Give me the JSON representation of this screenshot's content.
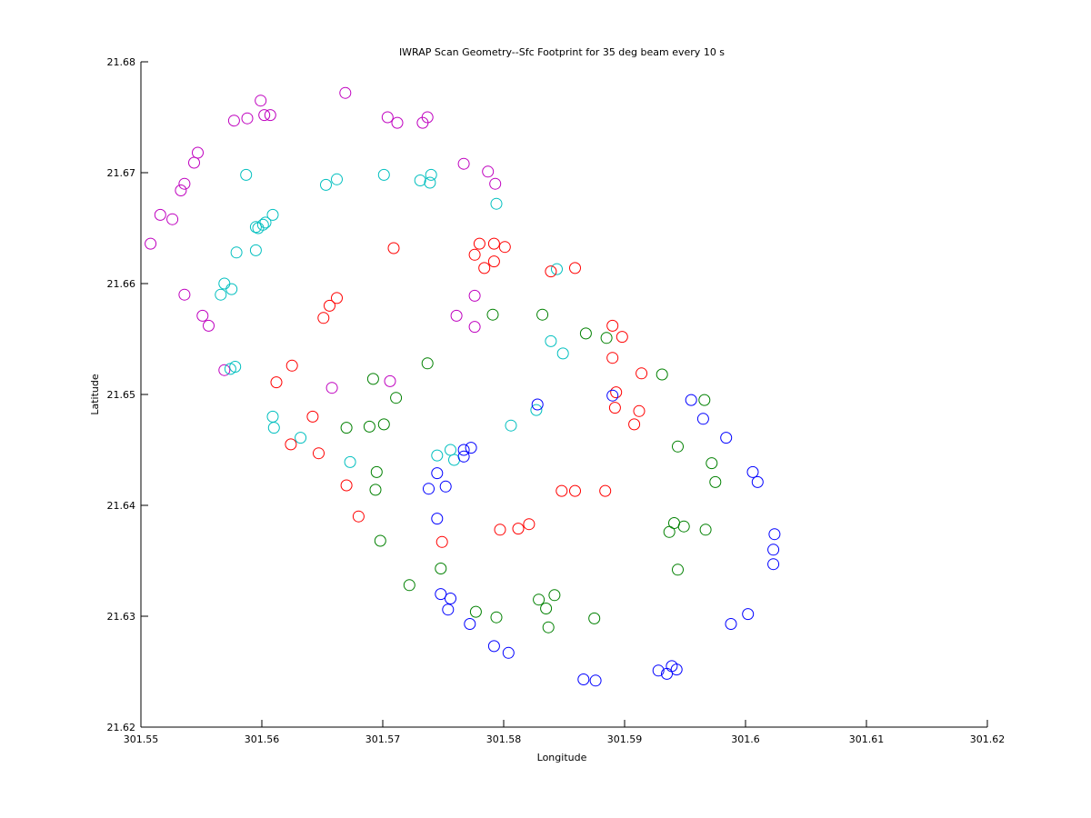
{
  "chart_data": {
    "type": "scatter",
    "title": "IWRAP Scan Geometry--Sfc Footprint for 35 deg beam every 10 s",
    "xlabel": "Longitude",
    "ylabel": "Latitude",
    "xlim": [
      301.55,
      301.62
    ],
    "ylim": [
      21.62,
      21.68
    ],
    "xticks": [
      301.55,
      301.56,
      301.57,
      301.58,
      301.59,
      301.6,
      301.61,
      301.62
    ],
    "xtick_labels": [
      "301.55",
      "301.56",
      "301.57",
      "301.58",
      "301.59",
      "301.6",
      "301.61",
      "301.62"
    ],
    "yticks": [
      21.62,
      21.63,
      21.64,
      21.65,
      21.66,
      21.67,
      21.68
    ],
    "ytick_labels": [
      "21.62",
      "21.63",
      "21.64",
      "21.65",
      "21.66",
      "21.67",
      "21.68"
    ],
    "grid": false,
    "marker": "open-circle",
    "series": [
      {
        "color": "#bf00bf",
        "points": [
          [
            301.5508,
            21.6636
          ],
          [
            301.5516,
            21.6662
          ],
          [
            301.5526,
            21.6658
          ],
          [
            301.5533,
            21.6684
          ],
          [
            301.5536,
            21.669
          ],
          [
            301.5544,
            21.6709
          ],
          [
            301.5547,
            21.6718
          ],
          [
            301.5536,
            21.659
          ],
          [
            301.5551,
            21.6571
          ],
          [
            301.5556,
            21.6562
          ],
          [
            301.5569,
            21.6522
          ],
          [
            301.5577,
            21.6747
          ],
          [
            301.5588,
            21.6749
          ],
          [
            301.5599,
            21.6765
          ],
          [
            301.5602,
            21.6752
          ],
          [
            301.5607,
            21.6752
          ],
          [
            301.5669,
            21.6772
          ],
          [
            301.5704,
            21.675
          ],
          [
            301.5712,
            21.6745
          ],
          [
            301.5733,
            21.6745
          ],
          [
            301.5737,
            21.675
          ],
          [
            301.5767,
            21.6708
          ],
          [
            301.5787,
            21.6701
          ],
          [
            301.5793,
            21.669
          ],
          [
            301.5776,
            21.6589
          ],
          [
            301.5761,
            21.6571
          ],
          [
            301.5776,
            21.6561
          ],
          [
            301.5658,
            21.6506
          ],
          [
            301.5706,
            21.6512
          ]
        ]
      },
      {
        "color": "#00bfbf",
        "points": [
          [
            301.5653,
            21.6689
          ],
          [
            301.5662,
            21.6694
          ],
          [
            301.5587,
            21.6698
          ],
          [
            301.5701,
            21.6698
          ],
          [
            301.5731,
            21.6693
          ],
          [
            301.574,
            21.6698
          ],
          [
            301.5739,
            21.6691
          ],
          [
            301.5794,
            21.6672
          ],
          [
            301.5609,
            21.6662
          ],
          [
            301.5603,
            21.6655
          ],
          [
            301.5601,
            21.6653
          ],
          [
            301.5597,
            21.665
          ],
          [
            301.5595,
            21.6651
          ],
          [
            301.5579,
            21.6628
          ],
          [
            301.5595,
            21.663
          ],
          [
            301.5569,
            21.66
          ],
          [
            301.5575,
            21.6595
          ],
          [
            301.5566,
            21.659
          ],
          [
            301.5574,
            21.6523
          ],
          [
            301.5578,
            21.6525
          ],
          [
            301.5609,
            21.648
          ],
          [
            301.561,
            21.647
          ],
          [
            301.5632,
            21.6461
          ],
          [
            301.5673,
            21.6439
          ],
          [
            301.5745,
            21.6445
          ],
          [
            301.5756,
            21.645
          ],
          [
            301.5759,
            21.6441
          ],
          [
            301.5806,
            21.6472
          ],
          [
            301.5827,
            21.6486
          ],
          [
            301.5839,
            21.6548
          ],
          [
            301.5849,
            21.6537
          ],
          [
            301.5844,
            21.6613
          ]
        ]
      },
      {
        "color": "#ff0000",
        "points": [
          [
            301.5709,
            21.6632
          ],
          [
            301.578,
            21.6636
          ],
          [
            301.5776,
            21.6626
          ],
          [
            301.5784,
            21.6614
          ],
          [
            301.5792,
            21.6636
          ],
          [
            301.5792,
            21.662
          ],
          [
            301.5801,
            21.6633
          ],
          [
            301.5662,
            21.6587
          ],
          [
            301.5656,
            21.658
          ],
          [
            301.5651,
            21.6569
          ],
          [
            301.5839,
            21.6611
          ],
          [
            301.5859,
            21.6614
          ],
          [
            301.589,
            21.6562
          ],
          [
            301.5898,
            21.6552
          ],
          [
            301.589,
            21.6533
          ],
          [
            301.5914,
            21.6519
          ],
          [
            301.5893,
            21.6502
          ],
          [
            301.5892,
            21.6488
          ],
          [
            301.5912,
            21.6485
          ],
          [
            301.5908,
            21.6473
          ],
          [
            301.5625,
            21.6526
          ],
          [
            301.5612,
            21.6511
          ],
          [
            301.5642,
            21.648
          ],
          [
            301.5624,
            21.6455
          ],
          [
            301.5647,
            21.6447
          ],
          [
            301.567,
            21.6418
          ],
          [
            301.568,
            21.639
          ],
          [
            301.5848,
            21.6413
          ],
          [
            301.5859,
            21.6413
          ],
          [
            301.5884,
            21.6413
          ],
          [
            301.5797,
            21.6378
          ],
          [
            301.5812,
            21.6379
          ],
          [
            301.5821,
            21.6383
          ],
          [
            301.5749,
            21.6367
          ]
        ]
      },
      {
        "color": "#008000",
        "points": [
          [
            301.5791,
            21.6572
          ],
          [
            301.5832,
            21.6572
          ],
          [
            301.5868,
            21.6555
          ],
          [
            301.5885,
            21.6551
          ],
          [
            301.5931,
            21.6518
          ],
          [
            301.5966,
            21.6495
          ],
          [
            301.5737,
            21.6528
          ],
          [
            301.5692,
            21.6514
          ],
          [
            301.5711,
            21.6497
          ],
          [
            301.567,
            21.647
          ],
          [
            301.5689,
            21.6471
          ],
          [
            301.5701,
            21.6473
          ],
          [
            301.5695,
            21.643
          ],
          [
            301.5694,
            21.6414
          ],
          [
            301.5944,
            21.6453
          ],
          [
            301.5972,
            21.6438
          ],
          [
            301.5975,
            21.6421
          ],
          [
            301.5941,
            21.6384
          ],
          [
            301.5949,
            21.6381
          ],
          [
            301.5937,
            21.6376
          ],
          [
            301.5967,
            21.6378
          ],
          [
            301.5944,
            21.6342
          ],
          [
            301.5698,
            21.6368
          ],
          [
            301.5748,
            21.6343
          ],
          [
            301.5722,
            21.6328
          ],
          [
            301.5777,
            21.6304
          ],
          [
            301.5794,
            21.6299
          ],
          [
            301.5829,
            21.6315
          ],
          [
            301.5842,
            21.6319
          ],
          [
            301.5835,
            21.6307
          ],
          [
            301.5837,
            21.629
          ],
          [
            301.5875,
            21.6298
          ]
        ]
      },
      {
        "color": "#0000ff",
        "points": [
          [
            301.5828,
            21.6491
          ],
          [
            301.589,
            21.6499
          ],
          [
            301.5955,
            21.6495
          ],
          [
            301.5965,
            21.6478
          ],
          [
            301.5984,
            21.6461
          ],
          [
            301.5773,
            21.6452
          ],
          [
            301.5767,
            21.645
          ],
          [
            301.5767,
            21.6444
          ],
          [
            301.5745,
            21.6429
          ],
          [
            301.5738,
            21.6415
          ],
          [
            301.5752,
            21.6417
          ],
          [
            301.6006,
            21.643
          ],
          [
            301.601,
            21.6421
          ],
          [
            301.5745,
            21.6388
          ],
          [
            301.6024,
            21.6374
          ],
          [
            301.6023,
            21.636
          ],
          [
            301.6023,
            21.6347
          ],
          [
            301.5748,
            21.632
          ],
          [
            301.5756,
            21.6316
          ],
          [
            301.5754,
            21.6306
          ],
          [
            301.5772,
            21.6293
          ],
          [
            301.5792,
            21.6273
          ],
          [
            301.5804,
            21.6267
          ],
          [
            301.5866,
            21.6243
          ],
          [
            301.5876,
            21.6242
          ],
          [
            301.5928,
            21.6251
          ],
          [
            301.5935,
            21.6248
          ],
          [
            301.5939,
            21.6255
          ],
          [
            301.5943,
            21.6252
          ],
          [
            301.5988,
            21.6293
          ],
          [
            301.6002,
            21.6302
          ]
        ]
      }
    ]
  }
}
